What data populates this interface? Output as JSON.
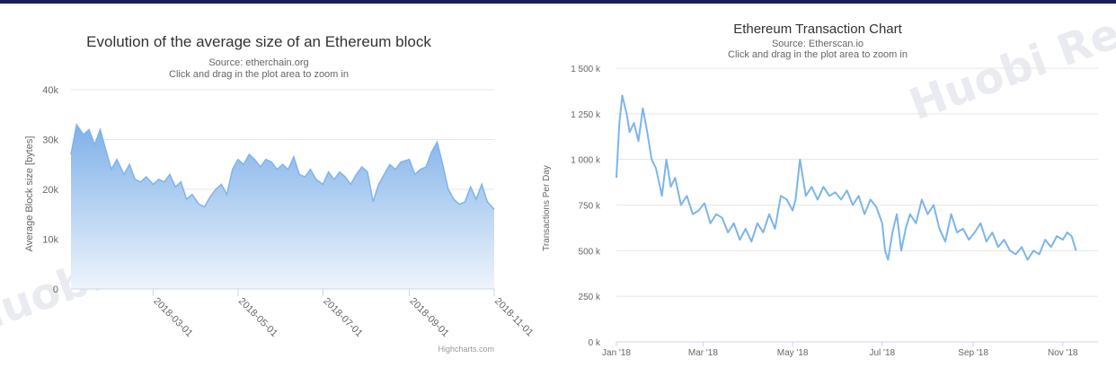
{
  "watermark": "Huobi Research",
  "colors": {
    "top_rule": "#1a1f5c",
    "left_fill_top": "#7fb1e8",
    "left_fill_bottom": "#eef4fc",
    "left_line": "#7cb5ec",
    "right_line": "#7cb5ec",
    "grid": "#e6e6e6"
  },
  "chart_data": [
    {
      "type": "area",
      "title": "Evolution of the average size of an Ethereum block",
      "subtitle_line1": "Source: etherchain.org",
      "subtitle_line2": "Click and drag in the plot area to zoom in",
      "ylabel": "Average Block size [bytes]",
      "ylim": [
        0,
        40000
      ],
      "yticks": [
        0,
        10000,
        20000,
        30000,
        40000
      ],
      "ytick_labels": [
        "0",
        "10k",
        "20k",
        "30k",
        "40k"
      ],
      "xlim": [
        "2018-01-01",
        "2018-11-01"
      ],
      "xtick_labels": [
        "2018-03-01",
        "2018-05-01",
        "2018-07-01",
        "2018-09-01",
        "2018-11-01"
      ],
      "credit": "Highcharts.com",
      "legend": "none",
      "grid": "horizontal",
      "x": [
        "2018-01-01",
        "2018-01-05",
        "2018-01-10",
        "2018-01-14",
        "2018-01-18",
        "2018-01-22",
        "2018-01-26",
        "2018-01-30",
        "2018-02-03",
        "2018-02-08",
        "2018-02-12",
        "2018-02-16",
        "2018-02-20",
        "2018-02-24",
        "2018-03-01",
        "2018-03-05",
        "2018-03-09",
        "2018-03-13",
        "2018-03-17",
        "2018-03-21",
        "2018-03-25",
        "2018-03-29",
        "2018-04-03",
        "2018-04-07",
        "2018-04-11",
        "2018-04-15",
        "2018-04-19",
        "2018-04-23",
        "2018-04-27",
        "2018-05-01",
        "2018-05-05",
        "2018-05-09",
        "2018-05-13",
        "2018-05-17",
        "2018-05-21",
        "2018-05-25",
        "2018-05-29",
        "2018-06-02",
        "2018-06-06",
        "2018-06-10",
        "2018-06-14",
        "2018-06-18",
        "2018-06-22",
        "2018-06-26",
        "2018-07-01",
        "2018-07-05",
        "2018-07-09",
        "2018-07-13",
        "2018-07-17",
        "2018-07-21",
        "2018-07-25",
        "2018-07-29",
        "2018-08-02",
        "2018-08-06",
        "2018-08-10",
        "2018-08-14",
        "2018-08-18",
        "2018-08-22",
        "2018-08-26",
        "2018-09-01",
        "2018-09-05",
        "2018-09-09",
        "2018-09-13",
        "2018-09-17",
        "2018-09-21",
        "2018-09-25",
        "2018-09-29",
        "2018-10-03",
        "2018-10-07",
        "2018-10-11",
        "2018-10-15",
        "2018-10-19",
        "2018-10-23",
        "2018-10-27",
        "2018-11-01"
      ],
      "values": [
        27000,
        33000,
        31000,
        32000,
        29000,
        32000,
        28000,
        24000,
        26000,
        23000,
        25000,
        22000,
        21500,
        22500,
        21000,
        22000,
        21500,
        23000,
        20500,
        21500,
        18000,
        19000,
        17000,
        16500,
        18500,
        20000,
        21000,
        19000,
        24000,
        26000,
        25000,
        27000,
        26000,
        24500,
        26000,
        25500,
        24000,
        25000,
        24000,
        26500,
        23000,
        22500,
        24000,
        22000,
        21000,
        23500,
        22000,
        23500,
        22500,
        21000,
        23000,
        24500,
        23500,
        17500,
        21000,
        23000,
        25000,
        24000,
        25500,
        26000,
        23000,
        24000,
        24500,
        27500,
        29500,
        25000,
        20000,
        18000,
        17000,
        17500,
        20500,
        18000,
        21000,
        17500,
        16000
      ]
    },
    {
      "type": "line",
      "title": "Ethereum Transaction Chart",
      "subtitle_line1": "Source: Etherscan.io",
      "subtitle_line2": "Click and drag in the plot area to zoom in",
      "ylabel": "Transactions Per Day",
      "ylim": [
        0,
        1500000
      ],
      "yticks": [
        0,
        250000,
        500000,
        750000,
        1000000,
        1250000,
        1500000
      ],
      "ytick_labels": [
        "0 k",
        "250 k",
        "500 k",
        "750 k",
        "1 000 k",
        "1 250 k",
        "1 500 k"
      ],
      "xlim": [
        "2018-01-01",
        "2018-11-25"
      ],
      "xticks": [
        "2018-01-01",
        "2018-03-01",
        "2018-05-01",
        "2018-07-01",
        "2018-09-01",
        "2018-11-01"
      ],
      "xtick_labels": [
        "Jan '18",
        "Mar '18",
        "May '18",
        "Jul '18",
        "Sep '18",
        "Nov '18"
      ],
      "legend": "none",
      "grid": "horizontal",
      "x": [
        "2018-01-01",
        "2018-01-03",
        "2018-01-05",
        "2018-01-08",
        "2018-01-10",
        "2018-01-13",
        "2018-01-16",
        "2018-01-19",
        "2018-01-22",
        "2018-01-25",
        "2018-01-28",
        "2018-02-01",
        "2018-02-04",
        "2018-02-07",
        "2018-02-10",
        "2018-02-14",
        "2018-02-18",
        "2018-02-22",
        "2018-02-26",
        "2018-03-02",
        "2018-03-06",
        "2018-03-10",
        "2018-03-14",
        "2018-03-18",
        "2018-03-22",
        "2018-03-26",
        "2018-03-30",
        "2018-04-03",
        "2018-04-07",
        "2018-04-11",
        "2018-04-15",
        "2018-04-19",
        "2018-04-23",
        "2018-04-27",
        "2018-05-01",
        "2018-05-03",
        "2018-05-06",
        "2018-05-10",
        "2018-05-14",
        "2018-05-18",
        "2018-05-22",
        "2018-05-26",
        "2018-05-30",
        "2018-06-03",
        "2018-06-07",
        "2018-06-11",
        "2018-06-15",
        "2018-06-19",
        "2018-06-23",
        "2018-06-27",
        "2018-07-01",
        "2018-07-03",
        "2018-07-05",
        "2018-07-08",
        "2018-07-11",
        "2018-07-14",
        "2018-07-17",
        "2018-07-20",
        "2018-07-24",
        "2018-07-28",
        "2018-08-01",
        "2018-08-05",
        "2018-08-09",
        "2018-08-13",
        "2018-08-17",
        "2018-08-21",
        "2018-08-25",
        "2018-08-29",
        "2018-09-02",
        "2018-09-06",
        "2018-09-10",
        "2018-09-14",
        "2018-09-18",
        "2018-09-22",
        "2018-09-26",
        "2018-09-30",
        "2018-10-04",
        "2018-10-08",
        "2018-10-12",
        "2018-10-16",
        "2018-10-20",
        "2018-10-24",
        "2018-10-28",
        "2018-11-01",
        "2018-11-04",
        "2018-11-07",
        "2018-11-10"
      ],
      "values": [
        900000,
        1200000,
        1350000,
        1250000,
        1150000,
        1200000,
        1100000,
        1280000,
        1150000,
        1000000,
        950000,
        800000,
        1000000,
        850000,
        900000,
        750000,
        800000,
        700000,
        720000,
        760000,
        650000,
        700000,
        680000,
        600000,
        650000,
        560000,
        620000,
        550000,
        650000,
        600000,
        700000,
        620000,
        800000,
        780000,
        720000,
        780000,
        1000000,
        800000,
        850000,
        780000,
        850000,
        800000,
        820000,
        780000,
        830000,
        750000,
        800000,
        700000,
        780000,
        740000,
        650000,
        500000,
        450000,
        600000,
        700000,
        500000,
        620000,
        700000,
        650000,
        780000,
        700000,
        750000,
        620000,
        550000,
        700000,
        600000,
        620000,
        560000,
        600000,
        650000,
        550000,
        600000,
        520000,
        560000,
        500000,
        480000,
        520000,
        450000,
        500000,
        480000,
        560000,
        520000,
        580000,
        560000,
        600000,
        580000,
        500000
      ]
    }
  ]
}
